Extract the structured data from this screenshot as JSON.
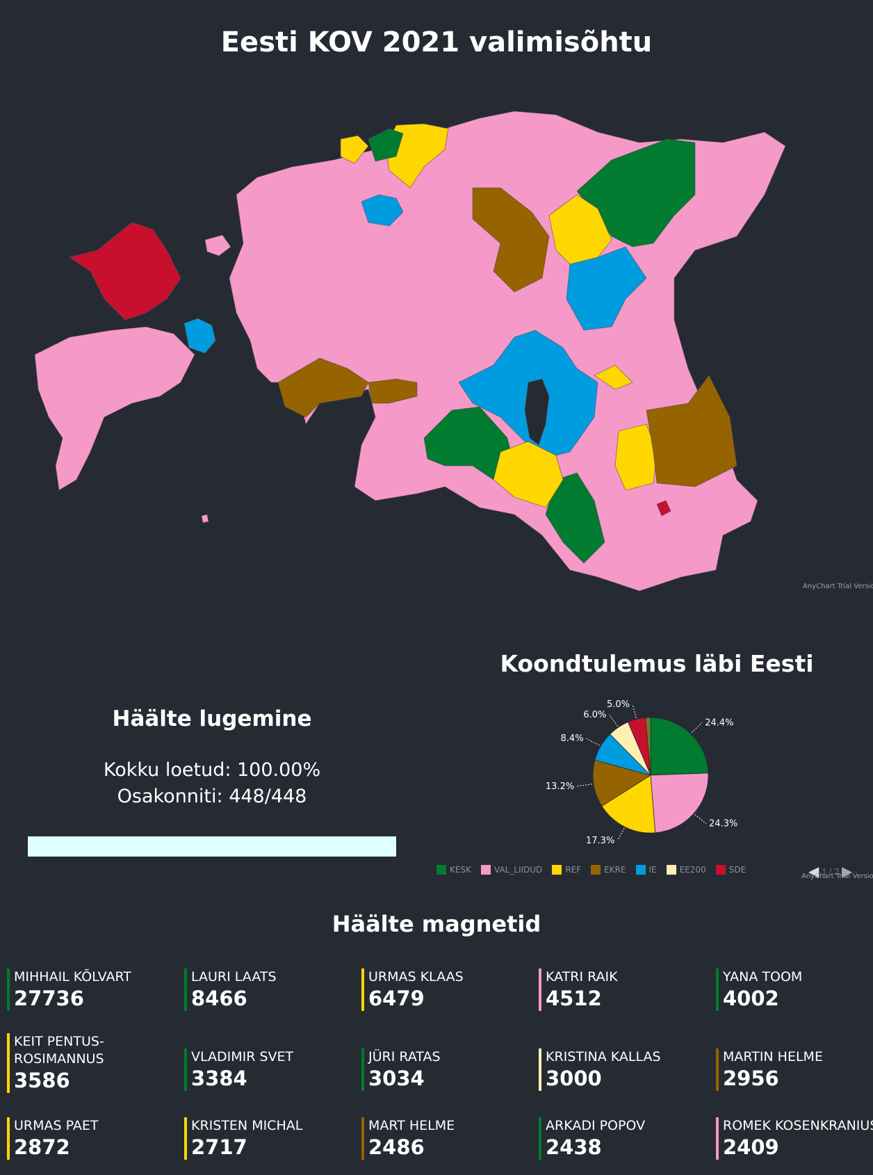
{
  "page": {
    "title": "Eesti KOV 2021 valimisõhtu",
    "background": "#262a33"
  },
  "map": {
    "credit": "AnyChart Trial Version",
    "party_colors": {
      "KESK": "#007b2f",
      "VAL_LIIDUD": "#f599c9",
      "REF": "#ffd700",
      "EKRE": "#956300",
      "IE": "#009ce0",
      "EE200": "#fff0b2",
      "SDE": "#c8102e"
    }
  },
  "counting": {
    "title": "Häälte lugemine",
    "total_label": "Kokku loetud: 100.00%",
    "districts_label": "Osakonniti: 448/448",
    "progress": 1.0,
    "progress_color": "#e0ffff"
  },
  "chart_data": {
    "type": "pie",
    "title": "Koondtulemus läbi Eesti",
    "legend_position": "bottom",
    "series": [
      {
        "name": "KESK",
        "value": 24.4,
        "label": "24.4%",
        "color": "#007b2f"
      },
      {
        "name": "VAL_LIIDUD",
        "value": 24.3,
        "label": "24.3%",
        "color": "#f599c9"
      },
      {
        "name": "REF",
        "value": 17.3,
        "label": "17.3%",
        "color": "#ffd700"
      },
      {
        "name": "EKRE",
        "value": 13.2,
        "label": "13.2%",
        "color": "#956300"
      },
      {
        "name": "IE",
        "value": 8.4,
        "label": "8.4%",
        "color": "#009ce0"
      },
      {
        "name": "EE200",
        "value": 6.0,
        "label": "6.0%",
        "color": "#fff0b2"
      },
      {
        "name": "SDE",
        "value": 5.0,
        "label": "5.0%",
        "color": "#c8102e"
      },
      {
        "name": "",
        "value": 1.4,
        "label": "",
        "color": "#7a7a2a"
      }
    ],
    "pager": "1 / 2",
    "credit": "AnyChart Trial Version"
  },
  "magnets": {
    "title": "Häälte magnetid",
    "candidates": [
      {
        "name": "MIHHAIL KÕLVART",
        "votes": "27736",
        "color": "#007b2f"
      },
      {
        "name": "LAURI LAATS",
        "votes": "8466",
        "color": "#007b2f"
      },
      {
        "name": "URMAS KLAAS",
        "votes": "6479",
        "color": "#ffd700"
      },
      {
        "name": "KATRI RAIK",
        "votes": "4512",
        "color": "#f599c9"
      },
      {
        "name": "YANA TOOM",
        "votes": "4002",
        "color": "#007b2f"
      },
      {
        "name": "KEIT PENTUS-ROSIMANNUS",
        "votes": "3586",
        "color": "#ffd700"
      },
      {
        "name": "VLADIMIR SVET",
        "votes": "3384",
        "color": "#007b2f"
      },
      {
        "name": "JÜRI RATAS",
        "votes": "3034",
        "color": "#007b2f"
      },
      {
        "name": "KRISTINA KALLAS",
        "votes": "3000",
        "color": "#fff0b2"
      },
      {
        "name": "MARTIN HELME",
        "votes": "2956",
        "color": "#956300"
      },
      {
        "name": "URMAS PAET",
        "votes": "2872",
        "color": "#ffd700"
      },
      {
        "name": "KRISTEN MICHAL",
        "votes": "2717",
        "color": "#ffd700"
      },
      {
        "name": "MART HELME",
        "votes": "2486",
        "color": "#956300"
      },
      {
        "name": "ARKADI POPOV",
        "votes": "2438",
        "color": "#007b2f"
      },
      {
        "name": "ROMEK KOSENKRANIUS",
        "votes": "2409",
        "color": "#f599c9"
      }
    ]
  }
}
